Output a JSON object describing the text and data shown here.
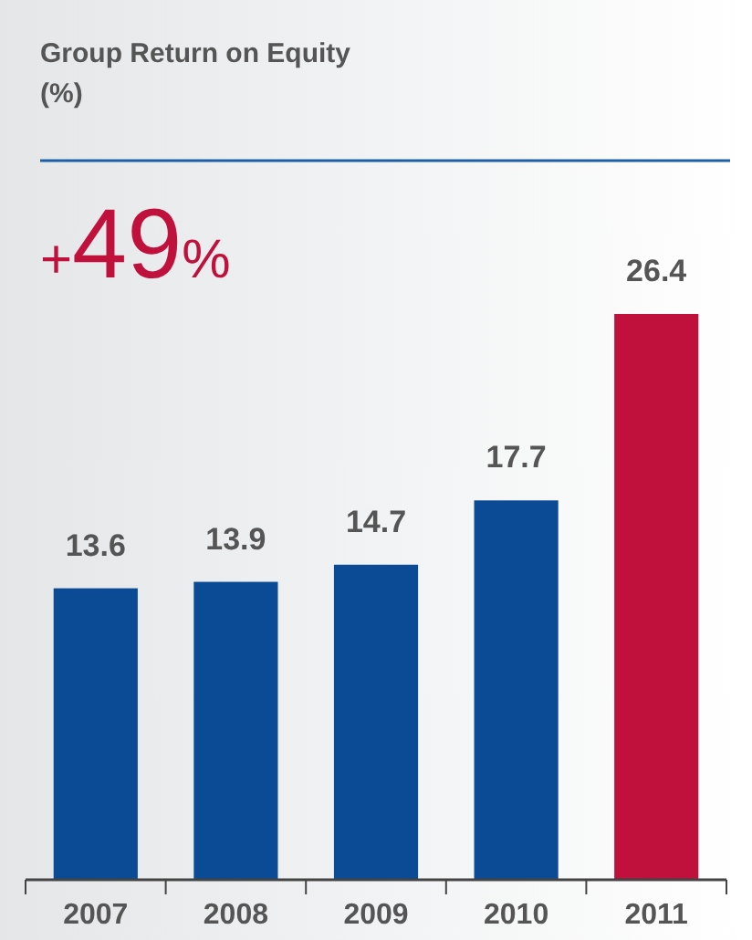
{
  "chart_data": {
    "type": "bar",
    "title": "Group Return on Equity\n(%)",
    "categories": [
      "2007",
      "2008",
      "2009",
      "2010",
      "2011"
    ],
    "values": [
      13.6,
      13.9,
      14.7,
      17.7,
      26.4
    ],
    "colors": [
      "#0b4a94",
      "#0b4a94",
      "#0b4a94",
      "#0b4a94",
      "#c0103c"
    ],
    "data_labels": true,
    "annotations": [
      "+49%"
    ]
  }
}
